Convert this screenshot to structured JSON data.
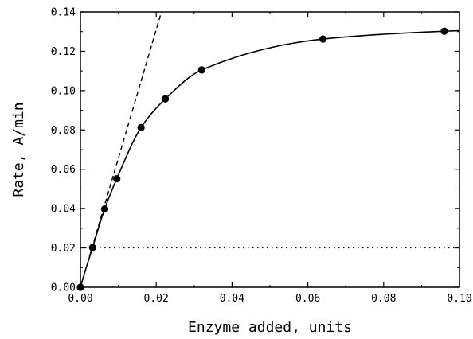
{
  "chart_data": {
    "type": "scatter",
    "title": "",
    "xlabel": "Enzyme added, units",
    "ylabel": "Rate, A/min",
    "xlim": [
      0.0,
      0.1
    ],
    "ylim": [
      0.0,
      0.14
    ],
    "x_ticks": [
      "0.00",
      "0.02",
      "0.04",
      "0.06",
      "0.08",
      "0.10"
    ],
    "y_ticks": [
      "0.00",
      "0.02",
      "0.04",
      "0.06",
      "0.08",
      "0.10",
      "0.12",
      "0.14"
    ],
    "grid": false,
    "series": [
      {
        "points": [
          {
            "x": 0.0,
            "y": 0.0
          },
          {
            "x": 0.0032,
            "y": 0.0202
          },
          {
            "x": 0.0064,
            "y": 0.0398
          },
          {
            "x": 0.0096,
            "y": 0.0552
          },
          {
            "x": 0.016,
            "y": 0.0812
          },
          {
            "x": 0.0224,
            "y": 0.0958
          },
          {
            "x": 0.032,
            "y": 0.1105
          },
          {
            "x": 0.064,
            "y": 0.1262
          },
          {
            "x": 0.096,
            "y": 0.1302
          }
        ]
      }
    ],
    "fitted_curve": {
      "style": "solid"
    },
    "initial_slope_line": {
      "style": "dashed",
      "slope": 6.55
    },
    "reference_line": {
      "style": "dotted",
      "y": 0.02
    }
  }
}
